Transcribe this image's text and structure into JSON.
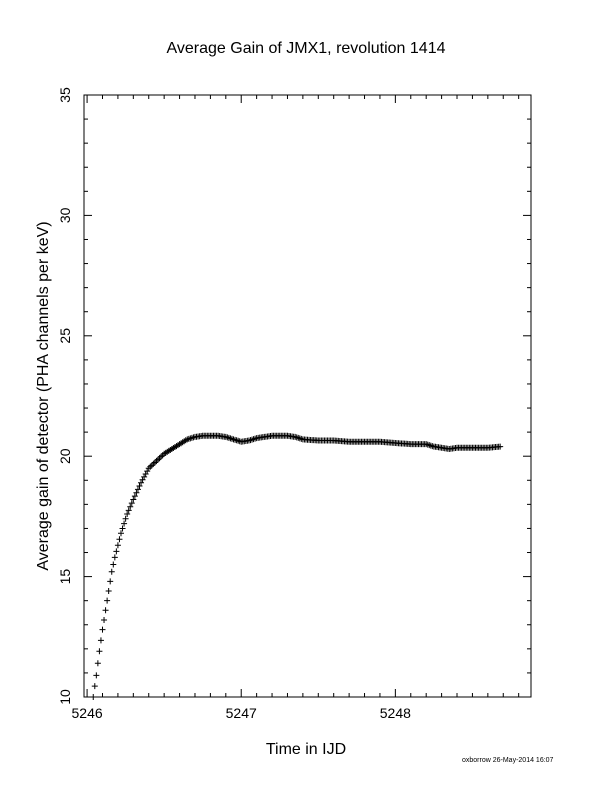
{
  "chart_data": {
    "type": "scatter",
    "title": "Average Gain of JMX1, revolution 1414",
    "xlabel": "Time in IJD",
    "ylabel": "Average gain of detector (PHA channels per keV)",
    "xlim": [
      5245.98,
      5248.88
    ],
    "ylim": [
      10,
      35
    ],
    "xticks": [
      5246,
      5247,
      5248
    ],
    "yticks": [
      10,
      15,
      20,
      25,
      30,
      35
    ],
    "marker": "plus",
    "grid": false,
    "legend": "none",
    "series": [
      {
        "color": "#000000",
        "x": [
          5246.04,
          5246.06,
          5246.08,
          5246.1,
          5246.12,
          5246.14,
          5246.16,
          5246.18,
          5246.2,
          5246.22,
          5246.24,
          5246.26,
          5246.3,
          5246.35,
          5246.4,
          5246.45,
          5246.5,
          5246.55,
          5246.6,
          5246.65,
          5246.7,
          5246.75,
          5246.8,
          5246.85,
          5246.9,
          5246.95,
          5247.0,
          5247.05,
          5247.1,
          5247.15,
          5247.2,
          5247.25,
          5247.3,
          5247.35,
          5247.4,
          5247.5,
          5247.6,
          5247.7,
          5247.8,
          5247.9,
          5248.0,
          5248.1,
          5248.2,
          5248.25,
          5248.3,
          5248.35,
          5248.4,
          5248.5,
          5248.6,
          5248.68
        ],
        "y": [
          10.0,
          10.9,
          11.9,
          12.8,
          13.6,
          14.4,
          15.2,
          15.8,
          16.3,
          16.8,
          17.2,
          17.6,
          18.2,
          18.9,
          19.5,
          19.8,
          20.1,
          20.3,
          20.5,
          20.7,
          20.8,
          20.85,
          20.85,
          20.85,
          20.8,
          20.7,
          20.6,
          20.65,
          20.75,
          20.8,
          20.85,
          20.85,
          20.85,
          20.8,
          20.7,
          20.65,
          20.65,
          20.6,
          20.6,
          20.6,
          20.55,
          20.5,
          20.5,
          20.4,
          20.35,
          20.3,
          20.35,
          20.35,
          20.35,
          20.4
        ]
      }
    ]
  },
  "footer": {
    "credit": "oxborrow 26-May-2014 16:07"
  }
}
